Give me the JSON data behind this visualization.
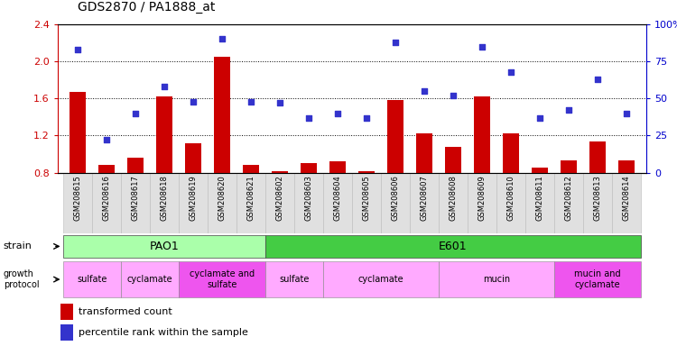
{
  "title": "GDS2870 / PA1888_at",
  "samples": [
    "GSM208615",
    "GSM208616",
    "GSM208617",
    "GSM208618",
    "GSM208619",
    "GSM208620",
    "GSM208621",
    "GSM208602",
    "GSM208603",
    "GSM208604",
    "GSM208605",
    "GSM208606",
    "GSM208607",
    "GSM208608",
    "GSM208609",
    "GSM208610",
    "GSM208611",
    "GSM208612",
    "GSM208613",
    "GSM208614"
  ],
  "transformed_count": [
    1.67,
    0.88,
    0.96,
    1.62,
    1.12,
    2.05,
    0.88,
    0.82,
    0.9,
    0.92,
    0.82,
    1.58,
    1.22,
    1.08,
    1.62,
    1.22,
    0.85,
    0.93,
    1.14,
    0.93
  ],
  "percentile_rank": [
    83,
    22,
    40,
    58,
    48,
    90,
    48,
    47,
    37,
    40,
    37,
    88,
    55,
    52,
    85,
    68,
    37,
    42,
    63,
    40
  ],
  "ylim_left": [
    0.8,
    2.4
  ],
  "ylim_right": [
    0,
    100
  ],
  "yticks_left": [
    0.8,
    1.2,
    1.6,
    2.0,
    2.4
  ],
  "yticks_right": [
    0,
    25,
    50,
    75,
    100
  ],
  "bar_color": "#cc0000",
  "dot_color": "#3333cc",
  "background_color": "#ffffff",
  "tick_color_left": "#cc0000",
  "tick_color_right": "#0000cc",
  "strain_segments": [
    {
      "label": "PAO1",
      "start": 0,
      "end": 6,
      "facecolor": "#aaffaa",
      "text_color": "#000000"
    },
    {
      "label": "E601",
      "start": 7,
      "end": 19,
      "facecolor": "#44cc44",
      "text_color": "#000000"
    }
  ],
  "growth_segments": [
    {
      "label": "sulfate",
      "start": 0,
      "end": 1,
      "facecolor": "#ffaaff"
    },
    {
      "label": "cyclamate",
      "start": 2,
      "end": 3,
      "facecolor": "#ffaaff"
    },
    {
      "label": "cyclamate and\nsulfate",
      "start": 4,
      "end": 6,
      "facecolor": "#ee55ee"
    },
    {
      "label": "sulfate",
      "start": 7,
      "end": 8,
      "facecolor": "#ffaaff"
    },
    {
      "label": "cyclamate",
      "start": 9,
      "end": 12,
      "facecolor": "#ffaaff"
    },
    {
      "label": "mucin",
      "start": 13,
      "end": 16,
      "facecolor": "#ffaaff"
    },
    {
      "label": "mucin and\ncyclamate",
      "start": 17,
      "end": 19,
      "facecolor": "#ee55ee"
    }
  ]
}
